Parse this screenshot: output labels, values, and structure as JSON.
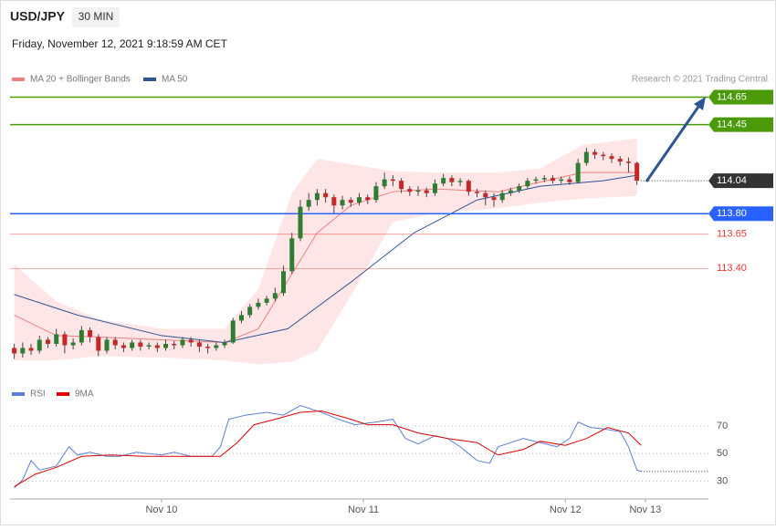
{
  "chart_data": {
    "type": "candlestick",
    "title": "USD/JPY",
    "timeframe": "30 MIN",
    "subtitle": "Friday, November 12, 2021 9:18:59 AM CET",
    "source": "Research © 2021 Trading Central",
    "up_color": "#2e7d32",
    "down_color": "#c62828",
    "xlim": [
      -1,
      165
    ],
    "ylim": [
      112.63,
      114.76
    ],
    "xticks": [
      {
        "value": 35,
        "label": "Nov 10"
      },
      {
        "value": 83,
        "label": "Nov 11"
      },
      {
        "value": 131,
        "label": "Nov 12"
      },
      {
        "value": 150,
        "label": "Nov 13"
      }
    ],
    "x": [
      0,
      2,
      4,
      6,
      8,
      10,
      12,
      14,
      16,
      18,
      20,
      22,
      24,
      26,
      28,
      30,
      32,
      34,
      36,
      38,
      40,
      42,
      44,
      46,
      48,
      50,
      52,
      54,
      56,
      58,
      60,
      62,
      64,
      66,
      68,
      70,
      72,
      74,
      76,
      78,
      80,
      82,
      84,
      86,
      88,
      90,
      92,
      94,
      96,
      98,
      100,
      102,
      104,
      106,
      108,
      110,
      112,
      114,
      116,
      118,
      120,
      122,
      124,
      126,
      128,
      130,
      132,
      134,
      136,
      138,
      140,
      142,
      144,
      146,
      148
    ],
    "open": [
      112.82,
      112.78,
      112.82,
      112.8,
      112.88,
      112.85,
      112.92,
      112.84,
      112.86,
      112.95,
      112.9,
      112.8,
      112.88,
      112.84,
      112.82,
      112.86,
      112.83,
      112.84,
      112.82,
      112.85,
      112.84,
      112.88,
      112.86,
      112.83,
      112.82,
      112.84,
      112.86,
      113.02,
      113.06,
      113.12,
      113.15,
      113.18,
      113.22,
      113.38,
      113.62,
      113.85,
      113.9,
      113.95,
      113.92,
      113.86,
      113.9,
      113.88,
      113.92,
      113.9,
      114.0,
      114.05,
      114.04,
      113.98,
      113.96,
      113.97,
      113.95,
      114.02,
      114.06,
      114.03,
      114.04,
      113.96,
      113.95,
      113.92,
      113.9,
      113.95,
      113.97,
      114.0,
      114.04,
      114.05,
      114.06,
      114.04,
      114.05,
      114.03,
      114.17,
      114.25,
      114.23,
      114.22,
      114.2,
      114.18,
      114.17
    ],
    "high": [
      112.85,
      112.86,
      112.85,
      112.91,
      112.9,
      112.96,
      112.94,
      112.89,
      112.98,
      112.97,
      112.92,
      112.9,
      112.9,
      112.86,
      112.88,
      112.88,
      112.86,
      112.86,
      112.88,
      112.87,
      112.9,
      112.9,
      112.88,
      112.85,
      112.86,
      112.88,
      113.04,
      113.09,
      113.14,
      113.18,
      113.2,
      113.26,
      113.42,
      113.66,
      113.9,
      113.95,
      113.98,
      113.98,
      113.94,
      113.93,
      113.92,
      113.95,
      113.94,
      114.03,
      114.1,
      114.08,
      114.06,
      114.0,
      114.0,
      113.99,
      114.05,
      114.09,
      114.08,
      114.06,
      114.05,
      113.98,
      113.97,
      113.95,
      113.97,
      113.99,
      114.02,
      114.06,
      114.07,
      114.08,
      114.08,
      114.07,
      114.07,
      114.2,
      114.28,
      114.27,
      114.25,
      114.24,
      114.22,
      114.21,
      114.18
    ],
    "low": [
      112.74,
      112.75,
      112.77,
      112.78,
      112.82,
      112.83,
      112.78,
      112.81,
      112.84,
      112.86,
      112.76,
      112.78,
      112.81,
      112.79,
      112.8,
      112.8,
      112.81,
      112.79,
      112.8,
      112.81,
      112.82,
      112.83,
      112.79,
      112.78,
      112.8,
      112.82,
      112.85,
      113.0,
      113.04,
      113.1,
      113.13,
      113.16,
      113.2,
      113.36,
      113.6,
      113.82,
      113.86,
      113.88,
      113.8,
      113.83,
      113.85,
      113.86,
      113.87,
      113.88,
      113.98,
      114.0,
      113.95,
      113.93,
      113.93,
      113.92,
      113.93,
      114.0,
      114.0,
      114.0,
      113.93,
      113.92,
      113.86,
      113.85,
      113.88,
      113.93,
      113.95,
      113.98,
      114.02,
      114.03,
      114.02,
      114.02,
      114.01,
      114.02,
      114.15,
      114.2,
      114.19,
      114.17,
      114.15,
      114.1,
      114.01
    ],
    "close": [
      112.78,
      112.82,
      112.8,
      112.88,
      112.85,
      112.92,
      112.84,
      112.86,
      112.95,
      112.9,
      112.8,
      112.88,
      112.84,
      112.82,
      112.86,
      112.83,
      112.84,
      112.82,
      112.85,
      112.84,
      112.88,
      112.86,
      112.83,
      112.82,
      112.84,
      112.86,
      113.02,
      113.06,
      113.12,
      113.15,
      113.18,
      113.22,
      113.38,
      113.62,
      113.85,
      113.9,
      113.95,
      113.92,
      113.86,
      113.9,
      113.88,
      113.92,
      113.9,
      114.0,
      114.05,
      114.04,
      113.98,
      113.96,
      113.97,
      113.95,
      114.02,
      114.06,
      114.03,
      114.04,
      113.96,
      113.95,
      113.92,
      113.9,
      113.95,
      113.97,
      114.0,
      114.04,
      114.05,
      114.06,
      114.04,
      114.05,
      114.03,
      114.17,
      114.25,
      114.23,
      114.22,
      114.2,
      114.18,
      114.17,
      114.04
    ],
    "overlays": [
      {
        "name": "MA 20 + Bollinger Bands",
        "color": "#f08080",
        "band_color": "#ffe0e0",
        "x": [
          0,
          10,
          20,
          35,
          50,
          58,
          66,
          72,
          80,
          90,
          100,
          115,
          125,
          135,
          148
        ],
        "values": [
          113.06,
          112.91,
          112.9,
          112.88,
          112.86,
          112.96,
          113.36,
          113.66,
          113.86,
          113.96,
          113.98,
          113.96,
          114.03,
          114.1,
          114.1
        ],
        "upper": [
          113.43,
          113.16,
          113.03,
          112.96,
          112.96,
          113.25,
          113.95,
          114.2,
          114.16,
          114.11,
          114.1,
          114.1,
          114.13,
          114.3,
          114.35
        ],
        "lower": [
          112.73,
          112.73,
          112.76,
          112.75,
          112.73,
          112.7,
          112.72,
          112.8,
          113.2,
          113.74,
          113.8,
          113.84,
          113.88,
          113.91,
          113.93
        ]
      },
      {
        "name": "MA 50",
        "color": "#2e5596",
        "x": [
          0,
          15,
          35,
          50,
          65,
          80,
          95,
          110,
          125,
          140,
          148
        ],
        "values": [
          113.21,
          113.06,
          112.91,
          112.86,
          112.96,
          113.3,
          113.66,
          113.9,
          114.0,
          114.04,
          114.08
        ]
      }
    ],
    "levels": [
      {
        "value": 114.65,
        "color": "#4a9a0a",
        "style": "box"
      },
      {
        "value": 114.45,
        "color": "#4a9a0a",
        "style": "box"
      },
      {
        "value": 114.04,
        "color": "#333333",
        "style": "current"
      },
      {
        "value": 113.8,
        "label": "113.80",
        "color": "#2962ff",
        "style": "box"
      },
      {
        "value": 113.65,
        "color": "#e53935",
        "style": "text"
      },
      {
        "value": 113.4,
        "label": "113.40",
        "color": "#e53935",
        "style": "text"
      }
    ],
    "rsi_panel": {
      "ylim": [
        17,
        88
      ],
      "yticks": [
        30,
        50,
        70
      ],
      "series": [
        {
          "name": "RSI",
          "color": "#5b7fd6",
          "x": [
            0,
            2,
            4,
            6,
            10,
            13,
            15,
            18,
            22,
            25,
            29,
            35,
            38,
            42,
            47,
            49,
            51,
            55,
            60,
            64,
            68,
            73,
            77,
            81,
            86,
            90,
            93,
            96,
            100,
            103,
            106,
            110,
            113,
            115,
            118,
            121,
            125,
            129,
            132,
            134,
            137,
            140,
            144,
            146,
            148,
            149
          ],
          "values": [
            25,
            31,
            45,
            38,
            41,
            55,
            49,
            51,
            48,
            48,
            51,
            49,
            51,
            48,
            48,
            55,
            75,
            78,
            80,
            78,
            85,
            80,
            75,
            71,
            73,
            75,
            61,
            57,
            63,
            61,
            55,
            45,
            43,
            55,
            58,
            61,
            58,
            55,
            61,
            73,
            69,
            68,
            66,
            55,
            38,
            37
          ]
        },
        {
          "name": "9MA",
          "color": "#e00000",
          "x": [
            0,
            5,
            10,
            16,
            23,
            31,
            40,
            49,
            53,
            57,
            62,
            68,
            73,
            80,
            84,
            90,
            96,
            103,
            110,
            115,
            121,
            125,
            131,
            136,
            141,
            146,
            149
          ],
          "values": [
            26,
            35,
            40,
            48,
            49,
            48,
            48,
            48,
            58,
            71,
            75,
            80,
            81,
            75,
            71,
            71,
            65,
            61,
            58,
            49,
            53,
            59,
            56,
            61,
            69,
            65,
            56
          ]
        }
      ]
    }
  }
}
